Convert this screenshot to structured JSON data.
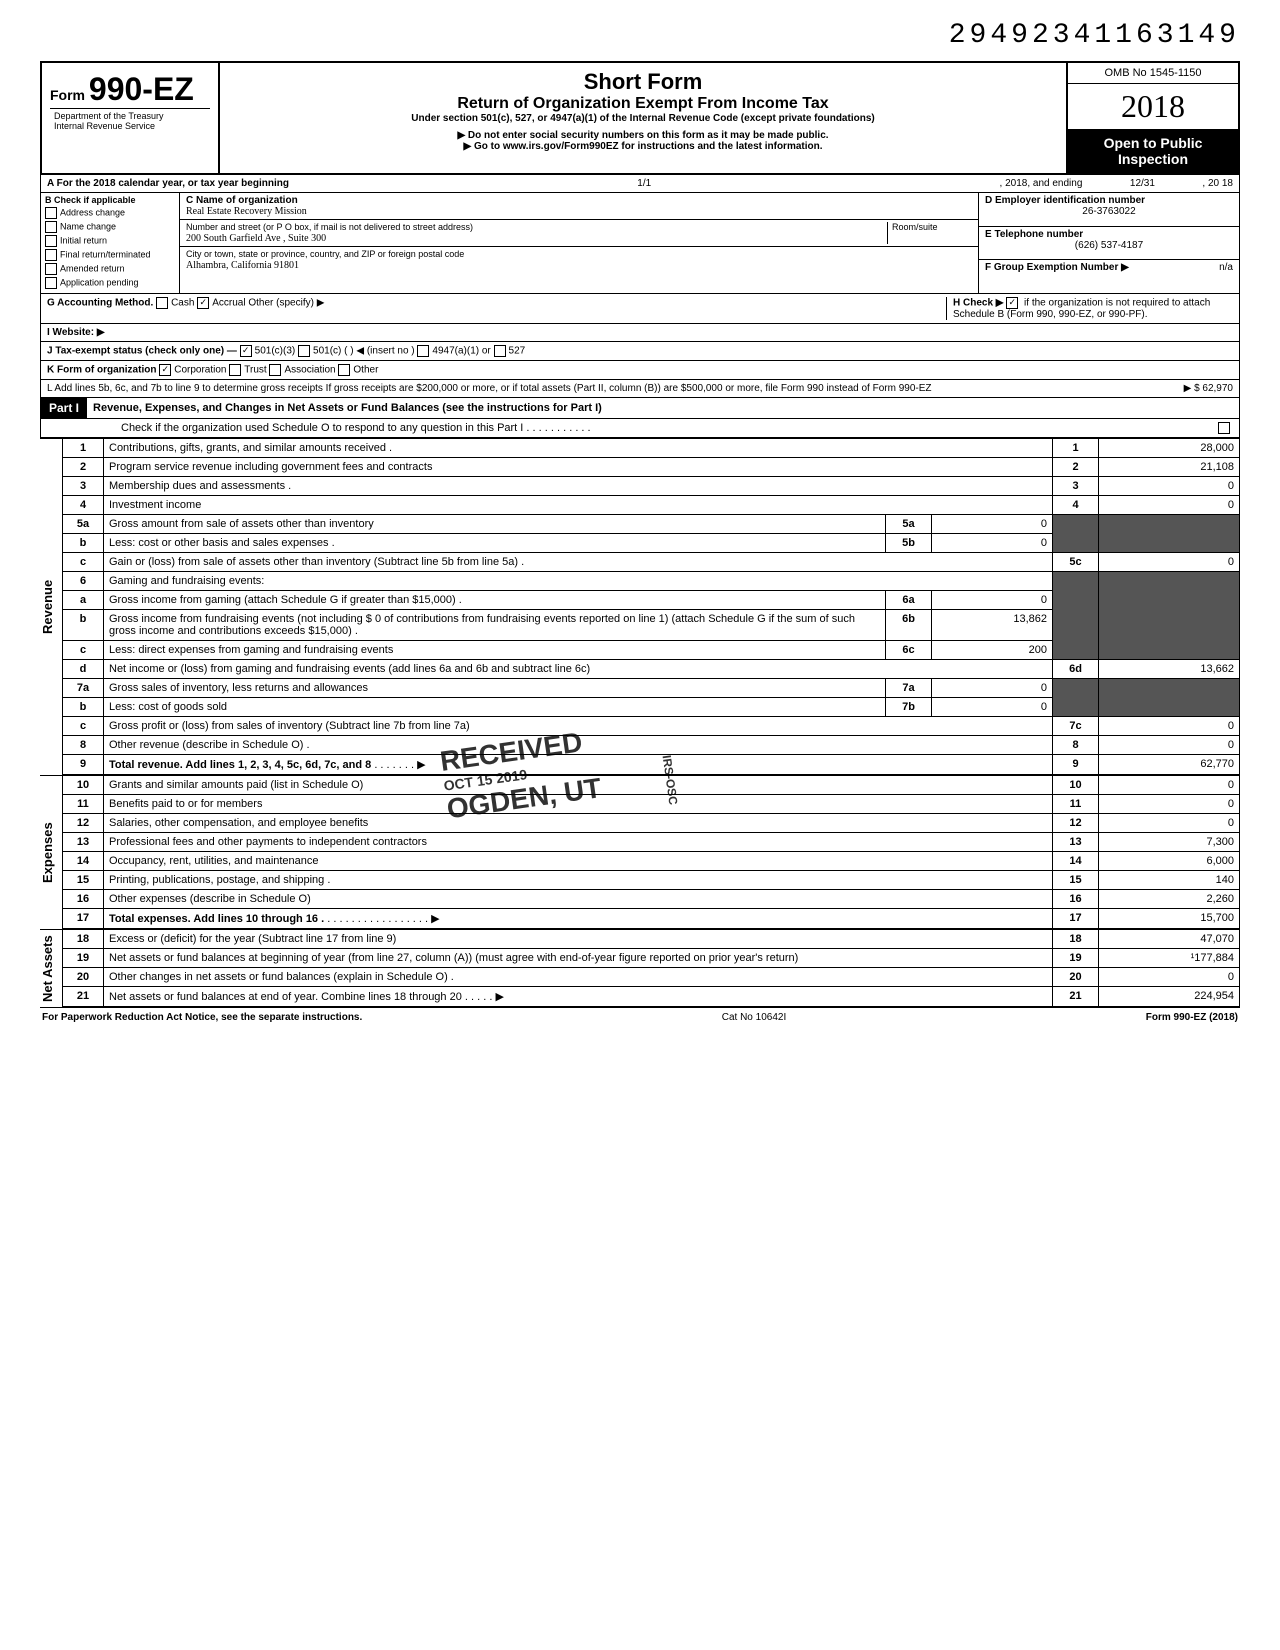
{
  "document_number": "29492341163149",
  "omb": "OMB No 1545-1150",
  "form_prefix": "Form",
  "form_number": "990-EZ",
  "title_short": "Short Form",
  "title_main": "Return of Organization Exempt From Income Tax",
  "title_under": "Under section 501(c), 527, or 4947(a)(1) of the Internal Revenue Code (except private foundations)",
  "warn1": "▶ Do not enter social security numbers on this form as it may be made public.",
  "warn2": "▶ Go to www.irs.gov/Form990EZ for instructions and the latest information.",
  "year": "2018",
  "open_public": "Open to Public Inspection",
  "dept1": "Department of the Treasury",
  "dept2": "Internal Revenue Service",
  "line_a": "A  For the 2018 calendar year, or tax year beginning",
  "line_a_mid": "1/1",
  "line_a_mid2": ", 2018, and ending",
  "line_a_end1": "12/31",
  "line_a_end2": ", 20  18",
  "b_label": "B  Check if applicable",
  "b_opts": [
    "Address change",
    "Name change",
    "Initial return",
    "Final return/terminated",
    "Amended return",
    "Application pending"
  ],
  "c_label": "C  Name of organization",
  "c_name": "Real Estate Recovery Mission",
  "c_addr_label": "Number and street (or P O  box, if mail is not delivered to street address)",
  "c_room": "Room/suite",
  "c_addr": "200 South Garfield Ave , Suite 300",
  "c_city_label": "City or town, state or province, country, and ZIP or foreign postal code",
  "c_city": "Alhambra, California 91801",
  "d_label": "D Employer identification number",
  "d_val": "26-3763022",
  "e_label": "E  Telephone number",
  "e_val": "(626) 537-4187",
  "f_label": "F  Group Exemption Number ▶",
  "f_val": "n/a",
  "g_label": "G  Accounting Method.",
  "g_cash": "Cash",
  "g_accrual": "Accrual",
  "g_other": "Other (specify) ▶",
  "h_label": "H  Check ▶",
  "h_text": "if the organization is not required to attach Schedule B (Form 990, 990-EZ, or 990-PF).",
  "i_label": "I  Website: ▶",
  "j_label": "J  Tax-exempt status (check only one) —",
  "j_501c3": "501(c)(3)",
  "j_501c": "501(c) (",
  "j_insert": ") ◀ (insert no )",
  "j_4947": "4947(a)(1) or",
  "j_527": "527",
  "k_label": "K  Form of organization",
  "k_corp": "Corporation",
  "k_trust": "Trust",
  "k_assoc": "Association",
  "k_other": "Other",
  "l_text": "L  Add lines 5b, 6c, and 7b to line 9 to determine gross receipts  If gross receipts are $200,000 or more, or if total assets (Part II, column (B)) are $500,000 or more, file Form 990 instead of Form 990-EZ",
  "l_val": "62,970",
  "part1_label": "Part I",
  "part1_title": "Revenue, Expenses, and Changes in Net Assets or Fund Balances (see the instructions for Part I)",
  "part1_check": "Check if the organization used Schedule O to respond to any question in this Part I",
  "lines": {
    "1": {
      "desc": "Contributions, gifts, grants, and similar amounts received .",
      "val": "28,000"
    },
    "2": {
      "desc": "Program service revenue including government fees and contracts",
      "val": "21,108"
    },
    "3": {
      "desc": "Membership dues and assessments .",
      "val": "0"
    },
    "4": {
      "desc": "Investment income",
      "val": "0"
    },
    "5a": {
      "desc": "Gross amount from sale of assets other than inventory",
      "sub": "0"
    },
    "5b": {
      "desc": "Less: cost or other basis and sales expenses .",
      "sub": "0"
    },
    "5c": {
      "desc": "Gain or (loss) from sale of assets other than inventory (Subtract line 5b from line 5a) .",
      "val": "0"
    },
    "6": {
      "desc": "Gaming and fundraising events:"
    },
    "6a": {
      "desc": "Gross income from gaming (attach Schedule G if greater than $15,000) .",
      "sub": "0"
    },
    "6b": {
      "desc": "Gross income from fundraising events (not including  $              0 of contributions from fundraising events reported on line 1) (attach Schedule G if the sum of such gross income and contributions exceeds $15,000) .",
      "sub": "13,862"
    },
    "6c": {
      "desc": "Less: direct expenses from gaming and fundraising events",
      "sub": "200"
    },
    "6d": {
      "desc": "Net income or (loss) from gaming and fundraising events (add lines 6a and 6b and subtract line 6c)",
      "val": "13,662"
    },
    "7a": {
      "desc": "Gross sales of inventory, less returns and allowances",
      "sub": "0"
    },
    "7b": {
      "desc": "Less: cost of goods sold",
      "sub": "0"
    },
    "7c": {
      "desc": "Gross profit or (loss) from sales of inventory (Subtract line 7b from line 7a)",
      "val": "0"
    },
    "8": {
      "desc": "Other revenue (describe in Schedule O) .",
      "val": "0"
    },
    "9": {
      "desc": "Total revenue. Add lines 1, 2, 3, 4, 5c, 6d, 7c, and 8",
      "val": "62,770",
      "bold": true
    },
    "10": {
      "desc": "Grants and similar amounts paid (list in Schedule O)",
      "val": "0"
    },
    "11": {
      "desc": "Benefits paid to or for members",
      "val": "0"
    },
    "12": {
      "desc": "Salaries, other compensation, and employee benefits",
      "val": "0"
    },
    "13": {
      "desc": "Professional fees and other payments to independent contractors",
      "val": "7,300"
    },
    "14": {
      "desc": "Occupancy, rent, utilities, and maintenance",
      "val": "6,000"
    },
    "15": {
      "desc": "Printing, publications, postage, and shipping .",
      "val": "140"
    },
    "16": {
      "desc": "Other expenses (describe in Schedule O)",
      "val": "2,260"
    },
    "17": {
      "desc": "Total expenses. Add lines 10 through 16 .",
      "val": "15,700",
      "bold": true
    },
    "18": {
      "desc": "Excess or (deficit) for the year (Subtract line 17 from line 9)",
      "val": "47,070"
    },
    "19": {
      "desc": "Net assets or fund balances at beginning of year (from line 27, column (A)) (must agree with end-of-year figure reported on prior year's return)",
      "val": "¹177,884"
    },
    "20": {
      "desc": "Other changes in net assets or fund balances (explain in Schedule O) .",
      "val": "0"
    },
    "21": {
      "desc": "Net assets or fund balances at end of year. Combine lines 18 through 20",
      "val": "224,954"
    }
  },
  "side_labels": {
    "revenue": "Revenue",
    "expenses": "Expenses",
    "netassets": "Net Assets"
  },
  "footer_left": "For Paperwork Reduction Act Notice, see the separate instructions.",
  "footer_mid": "Cat No 10642I",
  "footer_right": "Form 990-EZ (2018)",
  "stamp1": "RECEIVED",
  "stamp2": "OCT 15 2019",
  "stamp3": "OGDEN, UT",
  "stamp_side": "IRS-OSC",
  "colors": {
    "black": "#000000",
    "white": "#ffffff",
    "shaded": "#555555"
  }
}
